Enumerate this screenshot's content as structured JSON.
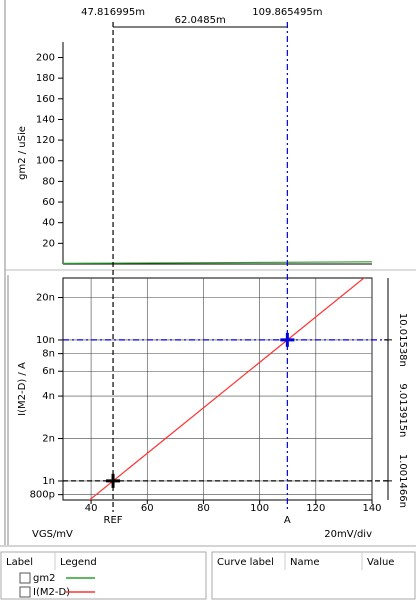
{
  "chart_data": [
    {
      "type": "line",
      "ylabel": "gm2 / uSie",
      "xlim": [
        30,
        140
      ],
      "ylim": [
        0,
        215
      ],
      "yticks": [
        20,
        40,
        60,
        80,
        100,
        120,
        140,
        160,
        180,
        200
      ],
      "series": [
        {
          "name": "gm2",
          "color": "#2ca02c",
          "x": [
            30,
            140
          ],
          "values": [
            0.6,
            2.1
          ]
        }
      ]
    },
    {
      "type": "line",
      "ylabel": "I(M2-D) / A",
      "xlabel": "VGS/mV",
      "x_scale_label": "20mV/div",
      "log_y": true,
      "grid": true,
      "xlim": [
        30,
        140
      ],
      "xticks": [
        40,
        60,
        80,
        100,
        120,
        140
      ],
      "ylim": [
        7.33e-10,
        2.75e-08
      ],
      "yticks": [
        {
          "value": 8e-10,
          "label": "800p"
        },
        {
          "value": 1e-09,
          "label": "1n"
        },
        {
          "value": 2e-09,
          "label": "2n"
        },
        {
          "value": 4e-09,
          "label": "4n"
        },
        {
          "value": 6e-09,
          "label": "6n"
        },
        {
          "value": 8e-09,
          "label": "8n"
        },
        {
          "value": 1e-08,
          "label": "10n"
        },
        {
          "value": 2e-08,
          "label": "20n"
        }
      ],
      "series": [
        {
          "name": "I(M2-D)",
          "color": "#ff3333",
          "x": [
            38.4,
            140
          ],
          "values": [
            7.05e-10,
            3.06e-08
          ]
        }
      ]
    }
  ],
  "cursors": [
    {
      "name": "REF",
      "color": "#000000",
      "x": 47.816995,
      "x_label": "47.816995m",
      "y": 1.001466e-09,
      "y_label": "1.001466n"
    },
    {
      "name": "A",
      "color": "#0000dd",
      "x": 109.865495,
      "x_label": "109.865495m",
      "y": 1.001538e-08,
      "y_label": "10.01538n"
    }
  ],
  "cursor_delta": {
    "x_label": "62.0485m",
    "y_label": "9.013915n"
  },
  "legend_panel": {
    "headers": [
      "Label",
      "Legend"
    ]
  },
  "value_panel": {
    "headers": [
      "Curve label",
      "Name",
      "Value"
    ]
  }
}
